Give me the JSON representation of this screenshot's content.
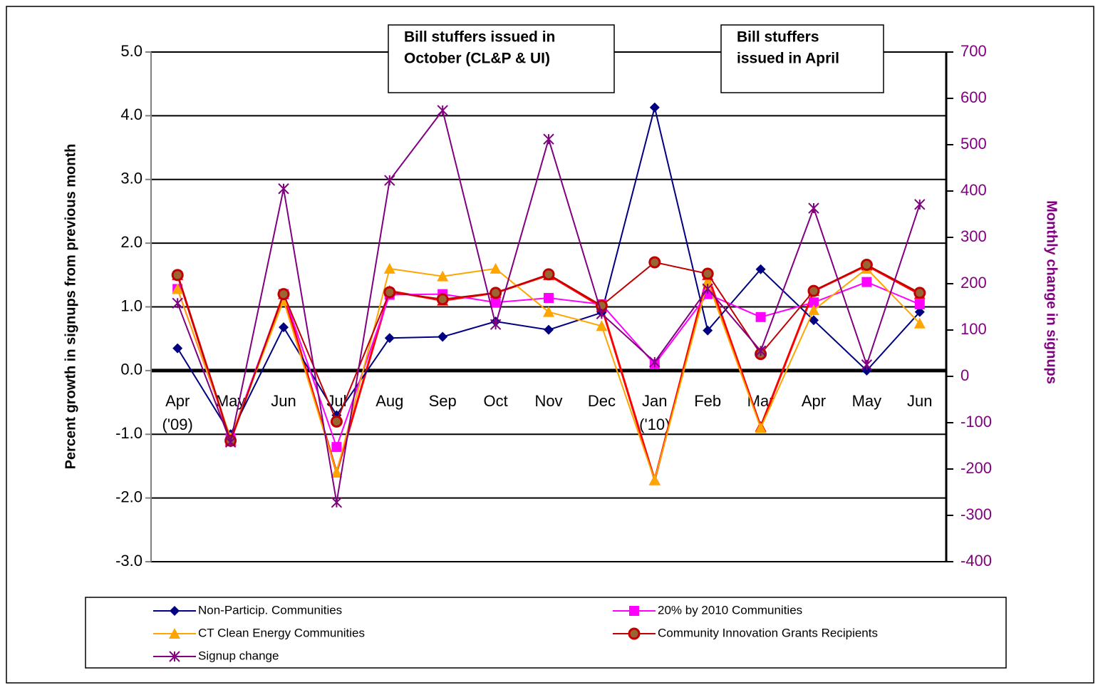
{
  "chart_data": {
    "type": "line",
    "y_label": "Percent growth in signups from previous month",
    "y2_label": "Monthly change in signups",
    "categories": [
      "Apr\n('09)",
      "May",
      "Jun",
      "Jul",
      "Aug",
      "Sep",
      "Oct",
      "Nov",
      "Dec",
      "Jan\n('10)",
      "Feb",
      "Mar",
      "Apr",
      "May",
      "Jun"
    ],
    "ylim": [
      -3,
      5
    ],
    "yticks": [
      {
        "value": -3,
        "label": "-3.0"
      },
      {
        "value": -2,
        "label": "-2.0"
      },
      {
        "value": -1,
        "label": "-1.0"
      },
      {
        "value": 0,
        "label": "0.0"
      },
      {
        "value": 1,
        "label": "1.0"
      },
      {
        "value": 2,
        "label": "2.0"
      },
      {
        "value": 3,
        "label": "3.0"
      },
      {
        "value": 4,
        "label": "4.0"
      },
      {
        "value": 5,
        "label": "5.0"
      }
    ],
    "y2lim": [
      -400,
      700
    ],
    "y2ticks": [
      -400,
      -300,
      -200,
      -100,
      0,
      100,
      200,
      300,
      400,
      500,
      600,
      700
    ],
    "grid": true,
    "annotations": [
      {
        "lines": [
          "Bill stuffers issued in",
          "October (CL&P & UI)"
        ]
      },
      {
        "lines": [
          "Bill stuffers",
          "issued in April"
        ]
      }
    ],
    "series": [
      {
        "color": "#ff0000",
        "marker": "triangle",
        "values": [
          1.5,
          -1.1,
          1.2,
          -1.6,
          1.25,
          1.1,
          1.22,
          1.5,
          1.0,
          -1.72,
          1.5,
          -0.88,
          1.25,
          1.65,
          1.2
        ]
      },
      {
        "name": "Non-Particip. Communities",
        "color": "#000080",
        "marker": "diamond",
        "values": [
          0.35,
          -1.0,
          0.68,
          -0.7,
          0.51,
          0.53,
          0.77,
          0.64,
          0.91,
          4.13,
          0.63,
          1.59,
          0.79,
          0.0,
          0.92
        ]
      },
      {
        "name": "20% by 2010 Communities",
        "color": "#ff00ff",
        "marker": "square",
        "values": [
          1.28,
          -1.06,
          1.2,
          -1.2,
          1.19,
          1.2,
          1.07,
          1.14,
          1.04,
          0.1,
          1.2,
          0.84,
          1.07,
          1.39,
          1.04
        ]
      },
      {
        "name": "CT Clean Energy Communities",
        "color": "#ffa500",
        "marker": "triangle",
        "values": [
          1.28,
          -1.05,
          1.1,
          -1.6,
          1.6,
          1.48,
          1.6,
          0.92,
          0.7,
          -1.72,
          1.4,
          -0.9,
          0.95,
          1.6,
          0.74
        ]
      },
      {
        "name": "Community Innovation Grants Recipients",
        "color": "#c00000",
        "marker": "circle",
        "values": [
          1.5,
          -1.1,
          1.2,
          -0.8,
          1.23,
          1.12,
          1.22,
          1.51,
          1.02,
          1.7,
          1.52,
          0.26,
          1.25,
          1.66,
          1.22
        ]
      },
      {
        "name": "Signup change",
        "color": "#800080",
        "marker": "star",
        "axis": "y2",
        "values": [
          158,
          -142,
          405,
          -272,
          423,
          574,
          112,
          512,
          135,
          31,
          189,
          55,
          363,
          25,
          371
        ]
      }
    ]
  }
}
